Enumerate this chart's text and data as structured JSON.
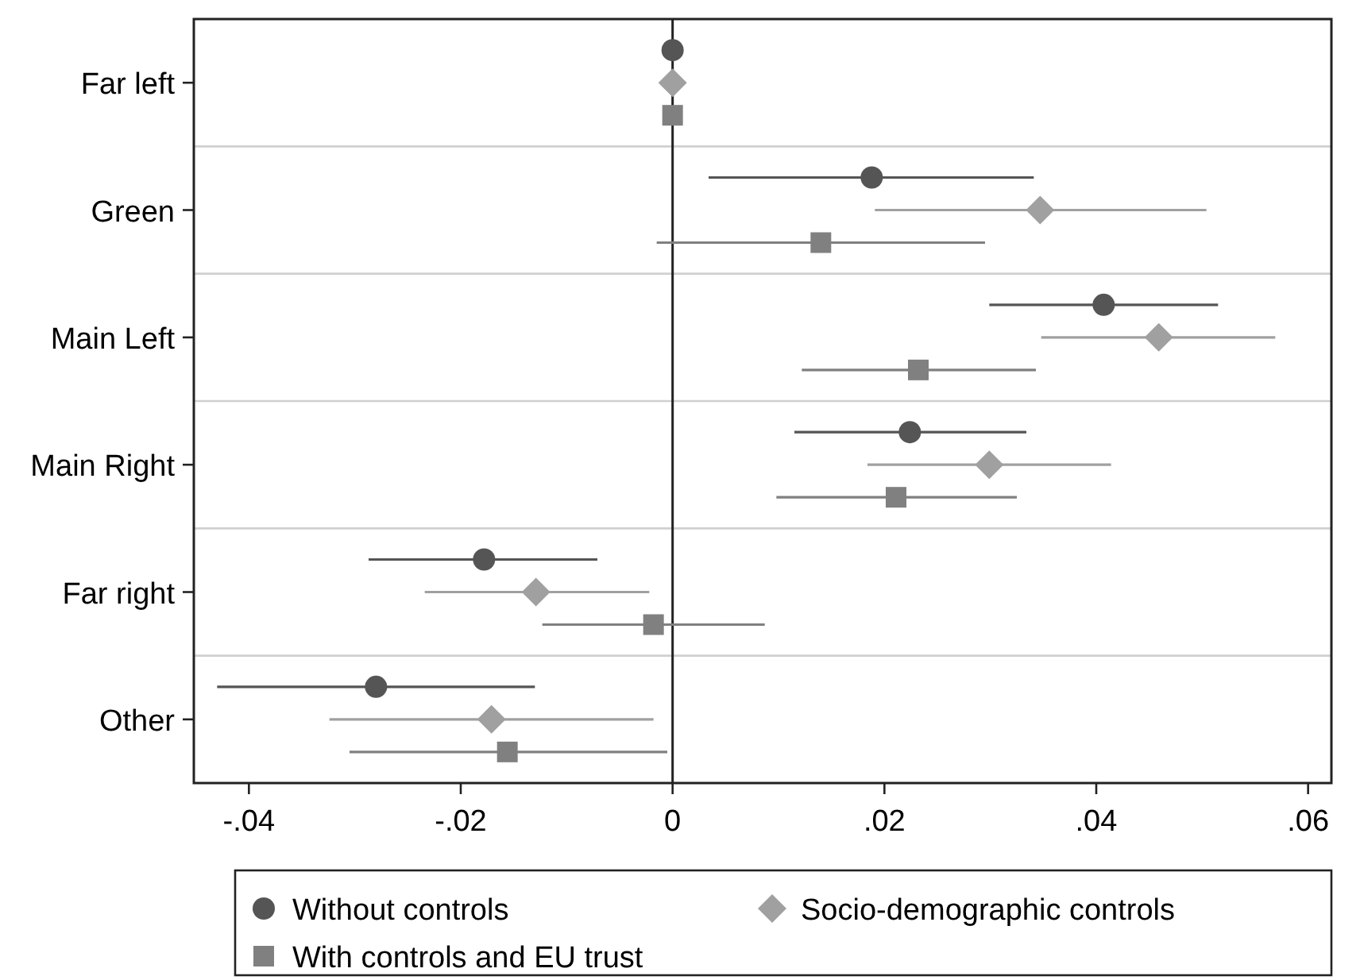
{
  "chart_data": {
    "type": "scatter",
    "orientation": "horizontal",
    "categories": [
      "Far left",
      "Green",
      "Main Left",
      "Main Right",
      "Far right",
      "Other"
    ],
    "series": [
      {
        "name": "Without controls",
        "color": "#555555",
        "marker": "circle",
        "values": [
          0,
          0.0188,
          0.0407,
          0.0224,
          -0.0178,
          -0.028
        ],
        "errors": [
          null,
          [
            0.0034,
            0.0341
          ],
          [
            0.0299,
            0.0515
          ],
          [
            0.0115,
            0.0334
          ],
          [
            -0.0287,
            -0.0071
          ],
          [
            -0.043,
            -0.013
          ]
        ]
      },
      {
        "name": "Socio-demographic controls",
        "color": "#a0a0a0",
        "marker": "diamond",
        "values": [
          0,
          0.0347,
          0.0459,
          0.0299,
          -0.0129,
          -0.0171
        ],
        "errors": [
          null,
          [
            0.0191,
            0.0504
          ],
          [
            0.0348,
            0.0569
          ],
          [
            0.0184,
            0.0414
          ],
          [
            -0.0234,
            -0.0022
          ],
          [
            -0.0324,
            -0.0018
          ]
        ]
      },
      {
        "name": "With controls and EU trust",
        "color": "#808080",
        "marker": "square",
        "values": [
          0,
          0.014,
          0.0232,
          0.0211,
          -0.0018,
          -0.0156
        ],
        "errors": [
          null,
          [
            -0.0015,
            0.0295
          ],
          [
            0.0122,
            0.0343
          ],
          [
            0.0098,
            0.0325
          ],
          [
            -0.0123,
            0.0087
          ],
          [
            -0.0305,
            -0.0005
          ]
        ]
      }
    ],
    "xlim": [
      -0.0452,
      0.0622
    ],
    "xticks": [
      {
        "value": -0.04,
        "label": "-.04"
      },
      {
        "value": -0.02,
        "label": "-.02"
      },
      0,
      {
        "value": 0.02,
        "label": ".02"
      },
      {
        "value": 0.04,
        "label": ".04"
      },
      {
        "value": 0.06,
        "label": ".06"
      }
    ],
    "ref_lines": [
      {
        "axis": "x",
        "value": 0,
        "color": "#222222"
      }
    ],
    "grid": "y",
    "legend": "bottom"
  }
}
